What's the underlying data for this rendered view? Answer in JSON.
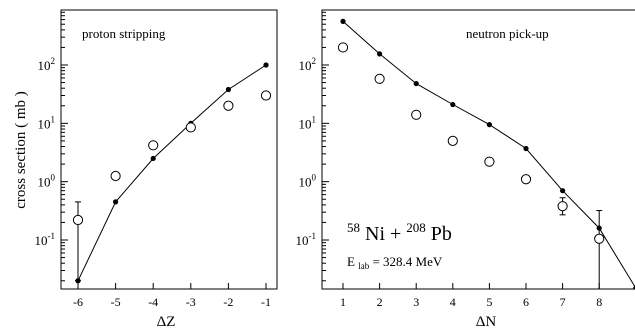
{
  "chart_data": [
    {
      "type": "scatter",
      "title": "proton  stripping",
      "xlabel": "ΔZ",
      "ylabel": "cross  section  ( mb )",
      "xlim": [
        -6.3,
        -0.7
      ],
      "ylim": [
        0.01,
        1000
      ],
      "y_scale": "log",
      "x_ticks": [
        "-6",
        "-5",
        "-4",
        "-3",
        "-2",
        "-1"
      ],
      "y_ticks": [
        {
          "base": "10",
          "exp": "-1",
          "value": 0.1
        },
        {
          "base": "10",
          "exp": "0",
          "value": 1
        },
        {
          "base": "10",
          "exp": "1",
          "value": 10
        },
        {
          "base": "10",
          "exp": "2",
          "value": 100
        }
      ],
      "series": [
        {
          "marker": "filled-circle-line",
          "x": [
            -6,
            -5,
            -4,
            -3,
            -2,
            -1
          ],
          "y": [
            0.02,
            0.45,
            2.5,
            10,
            38,
            100
          ]
        },
        {
          "marker": "open-circle",
          "x": [
            -6,
            -5,
            -4,
            -3,
            -2,
            -1
          ],
          "y": [
            0.22,
            1.25,
            4.2,
            8.5,
            20,
            30
          ],
          "err_low": [
            0.02,
            null,
            null,
            null,
            null,
            null
          ],
          "err_high": [
            0.45,
            null,
            null,
            null,
            null,
            null
          ]
        }
      ]
    },
    {
      "type": "scatter",
      "title": "neutron  pick-up",
      "xlabel": "ΔN",
      "ylim": [
        0.01,
        1000
      ],
      "y_scale": "log",
      "xlim": [
        0.5,
        9
      ],
      "x_ticks": [
        "1",
        "2",
        "3",
        "4",
        "5",
        "6",
        "7",
        "8"
      ],
      "y_ticks": [
        {
          "base": "10",
          "exp": "-1",
          "value": 0.1
        },
        {
          "base": "10",
          "exp": "0",
          "value": 1
        },
        {
          "base": "10",
          "exp": "1",
          "value": 10
        },
        {
          "base": "10",
          "exp": "2",
          "value": 100
        }
      ],
      "annotation": {
        "a1": "58",
        "el1": "Ni",
        "plus": " + ",
        "a2": "208",
        "el2": "Pb",
        "elab_sym": "E",
        "elab_sub": "lab",
        "elab_val": " = 328.4 MeV"
      },
      "series": [
        {
          "marker": "filled-circle-line",
          "x": [
            1,
            2,
            3,
            4,
            5,
            6,
            7,
            8,
            9
          ],
          "y": [
            560,
            155,
            48,
            21,
            9.5,
            3.7,
            0.7,
            0.16,
            0.015
          ]
        },
        {
          "marker": "open-circle",
          "x": [
            1,
            2,
            3,
            4,
            5,
            6,
            7,
            8
          ],
          "y": [
            200,
            58,
            14,
            5,
            2.2,
            1.1,
            0.38,
            0.105
          ],
          "err_low": [
            null,
            null,
            null,
            null,
            null,
            null,
            0.27,
            0.012
          ],
          "err_high": [
            null,
            null,
            null,
            null,
            null,
            null,
            0.53,
            0.32
          ]
        }
      ]
    }
  ]
}
